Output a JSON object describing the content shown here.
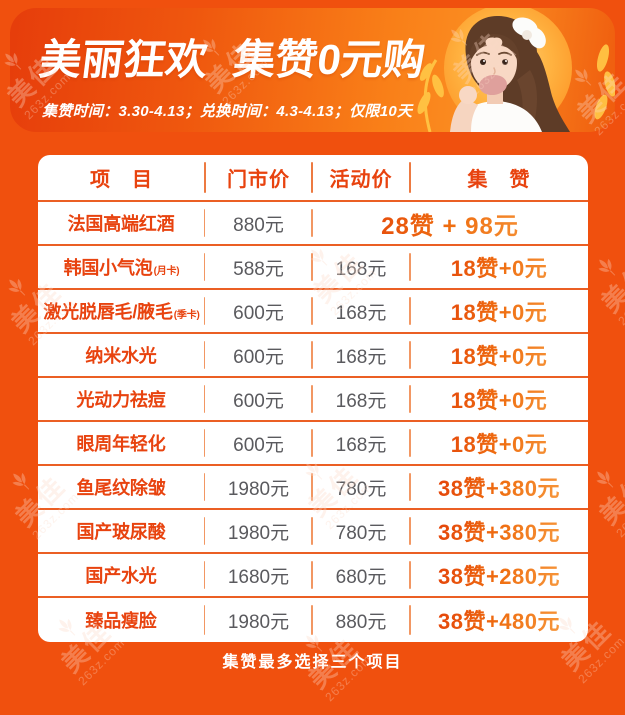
{
  "watermark": {
    "brand": "美佳",
    "site": "263z.com"
  },
  "banner": {
    "title_part1": "美丽狂欢",
    "title_part2": "集赞0元购",
    "subtitle": "集赞时间：3.30-4.13；兑换时间：4.3-4.13；仅限10天"
  },
  "table": {
    "headers": [
      "项　目",
      "门市价",
      "活动价",
      "集　赞"
    ],
    "rows": [
      {
        "item": "法国高端红酒",
        "note": "",
        "retail": "880元",
        "activity": "",
        "likes": "28赞 + 98元",
        "merged": true
      },
      {
        "item": "韩国小气泡",
        "note": "(月卡)",
        "retail": "588元",
        "activity": "168元",
        "likes": "18赞+0元",
        "merged": false
      },
      {
        "item": "激光脱唇毛/腋毛",
        "note": "(季卡)",
        "retail": "600元",
        "activity": "168元",
        "likes": "18赞+0元",
        "merged": false
      },
      {
        "item": "纳米水光",
        "note": "",
        "retail": "600元",
        "activity": "168元",
        "likes": "18赞+0元",
        "merged": false
      },
      {
        "item": "光动力祛痘",
        "note": "",
        "retail": "600元",
        "activity": "168元",
        "likes": "18赞+0元",
        "merged": false
      },
      {
        "item": "眼周年轻化",
        "note": "",
        "retail": "600元",
        "activity": "168元",
        "likes": "18赞+0元",
        "merged": false
      },
      {
        "item": "鱼尾纹除皱",
        "note": "",
        "retail": "1980元",
        "activity": "780元",
        "likes": "38赞+380元",
        "merged": false
      },
      {
        "item": "国产玻尿酸",
        "note": "",
        "retail": "1980元",
        "activity": "780元",
        "likes": "38赞+380元",
        "merged": false
      },
      {
        "item": "国产水光",
        "note": "",
        "retail": "1680元",
        "activity": "680元",
        "likes": "38赞+280元",
        "merged": false
      },
      {
        "item": "臻品瘦脸",
        "note": "",
        "retail": "1980元",
        "activity": "880元",
        "likes": "38赞+480元",
        "merged": false
      }
    ]
  },
  "footer": {
    "note": "集赞最多选择三个项目"
  },
  "colors": {
    "background": "#f0500e",
    "accent_text": "#e8430f",
    "price_gray": "#5a5a5e",
    "likes_gradient_from": "#e23d09",
    "likes_gradient_to": "#f9a449",
    "leaf_yellow": "#ffc445"
  }
}
